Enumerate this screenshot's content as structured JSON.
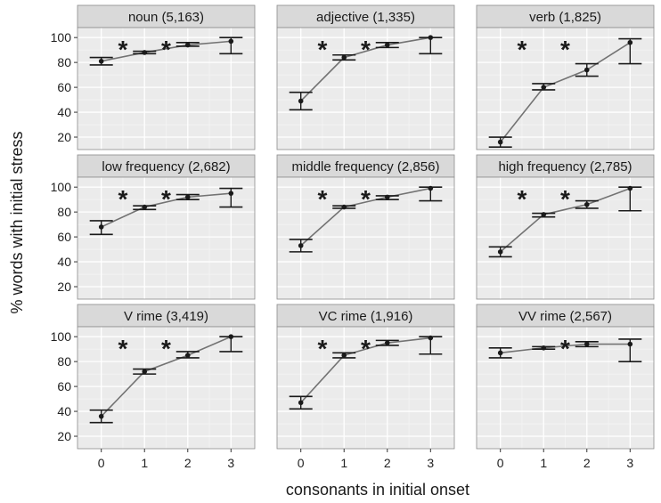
{
  "chart_data": {
    "type": "line",
    "xlabel": "consonants in initial onset",
    "ylabel": "% words with initial stress",
    "x": [
      0,
      1,
      2,
      3
    ],
    "x_tick_labels": [
      "0",
      "1",
      "2",
      "3"
    ],
    "y_ticks": [
      20,
      40,
      60,
      80,
      100
    ],
    "y_tick_labels": [
      "20",
      "40",
      "60",
      "80",
      "100"
    ],
    "ylim": [
      10,
      108
    ],
    "grid": true,
    "error_bars": true,
    "significance_marker": "*",
    "panels": [
      {
        "label": "noun (5,163)",
        "mean": [
          81,
          88,
          94,
          97
        ],
        "lower": [
          78,
          87,
          93,
          87
        ],
        "upper": [
          84,
          89,
          96,
          100
        ],
        "sig": [
          0.5,
          1.5
        ]
      },
      {
        "label": "adjective (1,335)",
        "mean": [
          49,
          84,
          94,
          100
        ],
        "lower": [
          42,
          82,
          92,
          87
        ],
        "upper": [
          56,
          86,
          96,
          100
        ],
        "sig": [
          0.5,
          1.5
        ]
      },
      {
        "label": "verb (1,825)",
        "mean": [
          16,
          60,
          74,
          96
        ],
        "lower": [
          12,
          58,
          69,
          79
        ],
        "upper": [
          20,
          63,
          79,
          99
        ],
        "sig": [
          0.5,
          1.5
        ]
      },
      {
        "label": "low frequency (2,682)",
        "mean": [
          68,
          84,
          92,
          95
        ],
        "lower": [
          62,
          82,
          90,
          84
        ],
        "upper": [
          73,
          85,
          94,
          99
        ],
        "sig": [
          0.5,
          1.5
        ]
      },
      {
        "label": "middle frequency (2,856)",
        "mean": [
          53,
          84,
          92,
          99
        ],
        "lower": [
          48,
          83,
          90,
          89
        ],
        "upper": [
          58,
          85,
          93,
          100
        ],
        "sig": [
          0.5,
          1.5
        ]
      },
      {
        "label": "high frequency (2,785)",
        "mean": [
          48,
          78,
          86,
          99
        ],
        "lower": [
          44,
          76,
          83,
          81
        ],
        "upper": [
          52,
          79,
          89,
          100
        ],
        "sig": [
          0.5,
          1.5
        ]
      },
      {
        "label": "V rime (3,419)",
        "mean": [
          36,
          72,
          85,
          100
        ],
        "lower": [
          31,
          70,
          83,
          88
        ],
        "upper": [
          41,
          74,
          88,
          100
        ],
        "sig": [
          0.5,
          1.5
        ]
      },
      {
        "label": "VC rime (1,916)",
        "mean": [
          47,
          85,
          95,
          99
        ],
        "lower": [
          42,
          83,
          93,
          86
        ],
        "upper": [
          52,
          87,
          97,
          100
        ],
        "sig": [
          0.5,
          1.5
        ]
      },
      {
        "label": "VV rime (2,567)",
        "mean": [
          87,
          91,
          94,
          94
        ],
        "lower": [
          83,
          90,
          92,
          80
        ],
        "upper": [
          91,
          92,
          96,
          98
        ],
        "sig": [
          1.5
        ]
      }
    ],
    "colors": {
      "panel_bg": "#ebebeb",
      "strip_bg": "#d9d9d9",
      "grid_major": "#ffffff",
      "grid_minor": "#f4f4f4",
      "line": "#737373",
      "error_bar": "#1a1a1a",
      "point": "#1a1a1a"
    }
  }
}
